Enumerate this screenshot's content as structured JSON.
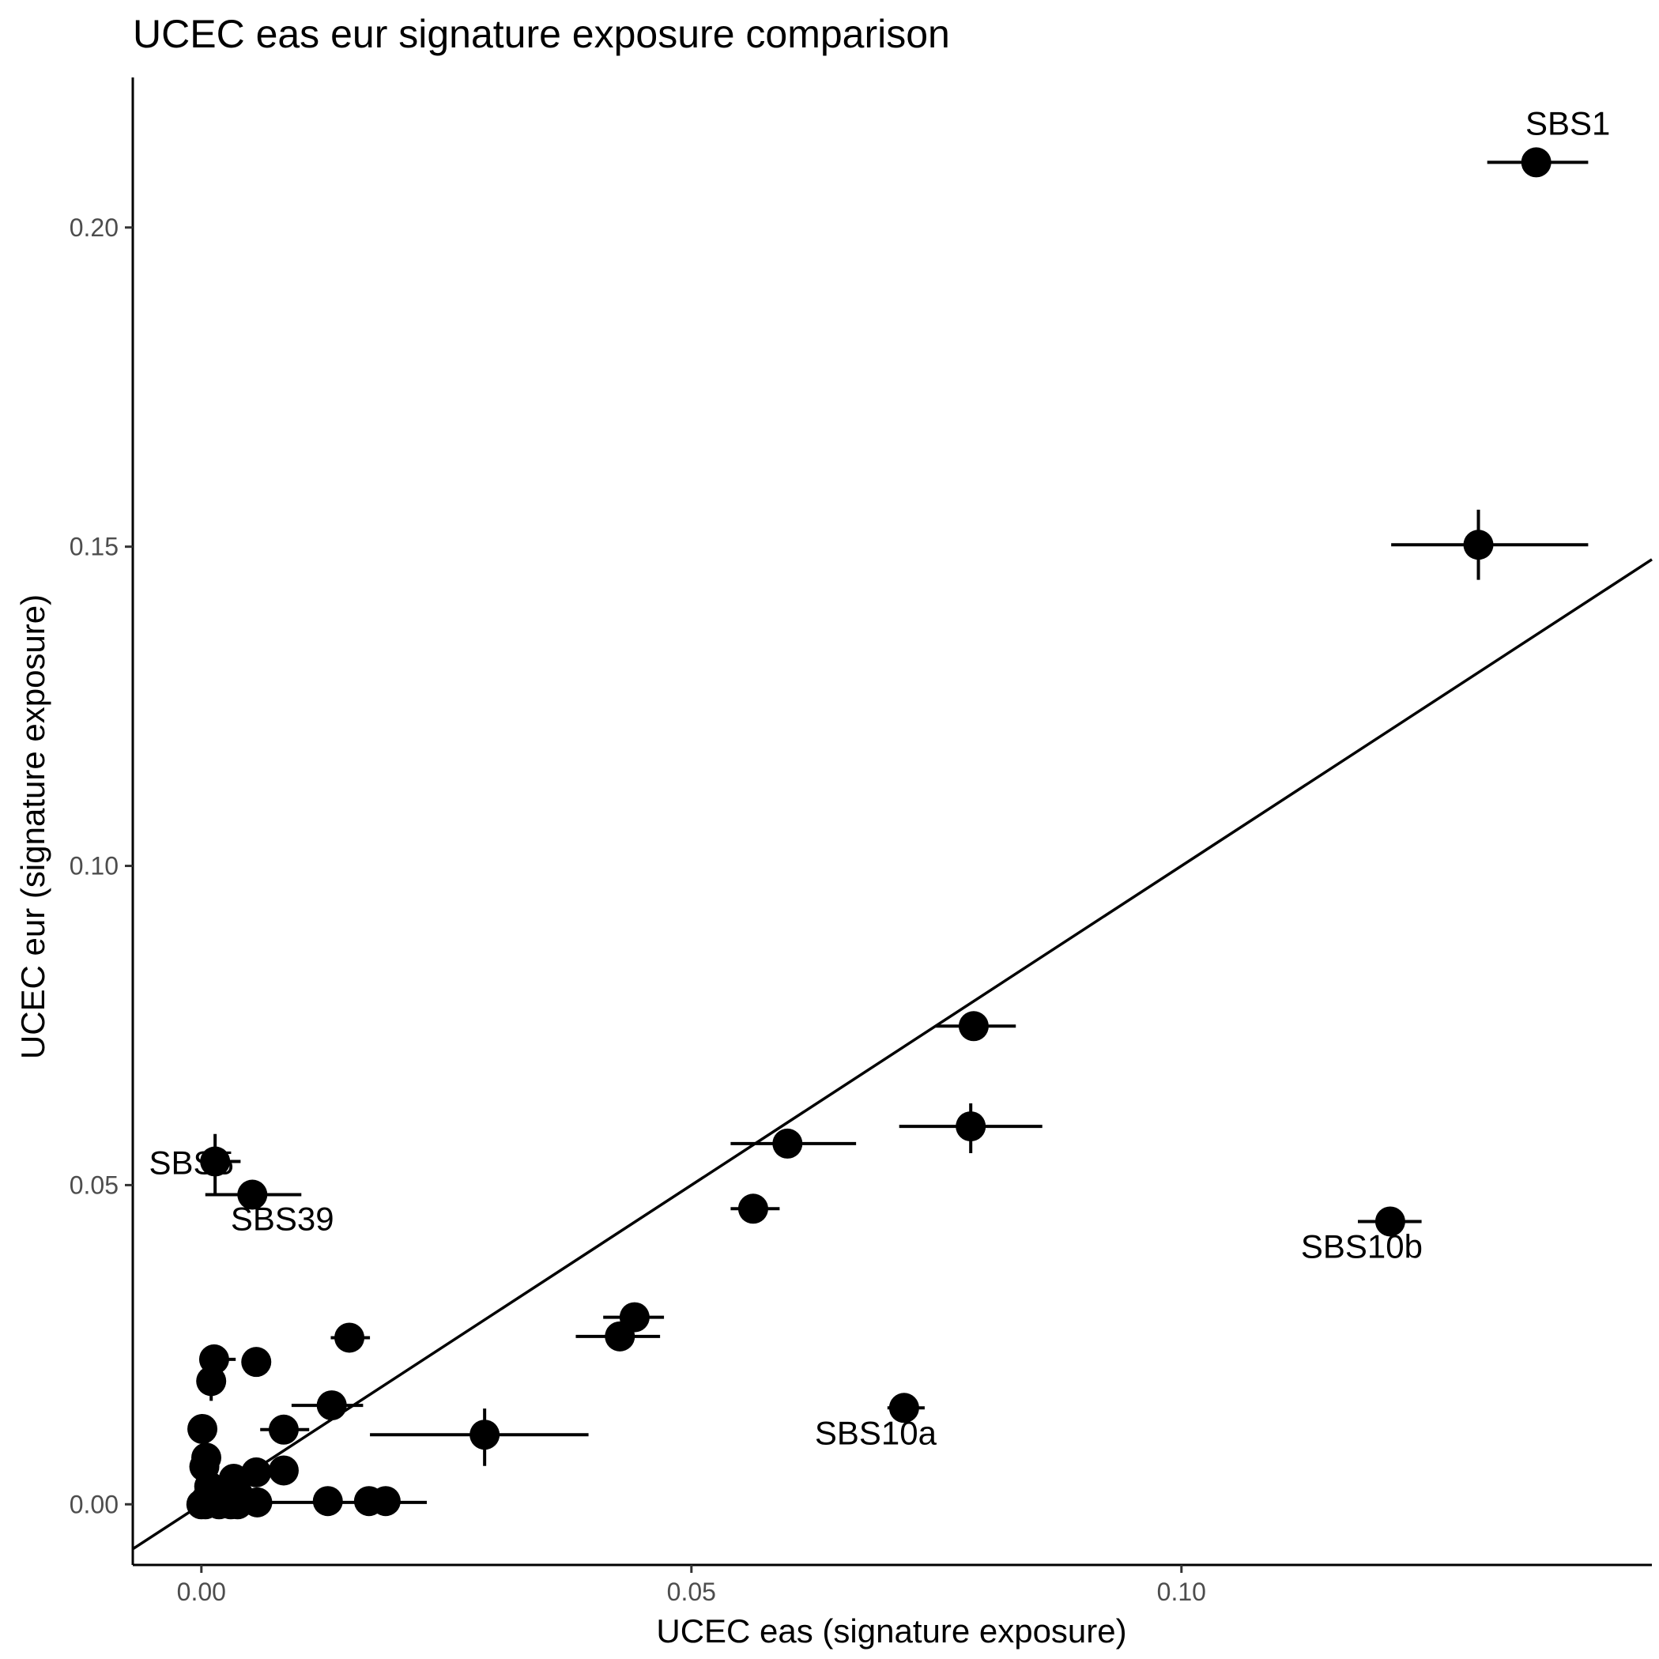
{
  "chart_data": {
    "type": "scatter",
    "title": "UCEC eas eur signature exposure comparison",
    "xlabel": "UCEC eas (signature exposure)",
    "ylabel": "UCEC eur (signature exposure)",
    "xlim": [
      -0.007,
      0.148
    ],
    "ylim": [
      -0.0095,
      0.2235
    ],
    "x_ticks": [
      0.0,
      0.05,
      0.1
    ],
    "x_tick_labels": [
      "0.00",
      "0.05",
      "0.10"
    ],
    "y_ticks": [
      0.0,
      0.05,
      0.1,
      0.15,
      0.2
    ],
    "y_tick_labels": [
      "0.00",
      "0.05",
      "0.10",
      "0.15",
      "0.20"
    ],
    "grid": false,
    "legend": "none",
    "reference_line": {
      "type": "identity",
      "label": "y = x"
    },
    "points": [
      {
        "label": "SBS1",
        "x": 0.1362,
        "y": 0.2102,
        "xerr": [
          0.1312,
          0.1415
        ],
        "yerr": null
      },
      {
        "label": "",
        "x": 0.1303,
        "y": 0.1503,
        "xerr": [
          0.1214,
          0.1415
        ],
        "yerr": [
          0.1448,
          0.1558
        ]
      },
      {
        "label": "SBS10b",
        "x": 0.1213,
        "y": 0.0443,
        "xerr": [
          0.118,
          0.1245
        ],
        "yerr": null
      },
      {
        "label": "",
        "x": 0.0788,
        "y": 0.0749,
        "xerr": [
          0.0749,
          0.0831
        ],
        "yerr": null
      },
      {
        "label": "",
        "x": 0.0785,
        "y": 0.0592,
        "xerr": [
          0.0712,
          0.0858
        ],
        "yerr": [
          0.055,
          0.0628
        ]
      },
      {
        "label": "SBS10a",
        "x": 0.0717,
        "y": 0.0151,
        "xerr": [
          0.07,
          0.0738
        ],
        "yerr": null
      },
      {
        "label": "",
        "x": 0.0598,
        "y": 0.0565,
        "xerr": [
          0.054,
          0.0668
        ],
        "yerr": null
      },
      {
        "label": "",
        "x": 0.0563,
        "y": 0.0463,
        "xerr": [
          0.054,
          0.059
        ],
        "yerr": null
      },
      {
        "label": "",
        "x": 0.0442,
        "y": 0.0293,
        "xerr": [
          0.041,
          0.0472
        ],
        "yerr": null
      },
      {
        "label": "",
        "x": 0.0427,
        "y": 0.0263,
        "xerr": [
          0.0382,
          0.0468
        ],
        "yerr": null
      },
      {
        "label": "",
        "x": 0.0289,
        "y": 0.0109,
        "xerr": [
          0.0172,
          0.0395
        ],
        "yerr": [
          0.006,
          0.015
        ]
      },
      {
        "label": "",
        "x": 0.0151,
        "y": 0.0261,
        "xerr": [
          0.0132,
          0.0172
        ],
        "yerr": null
      },
      {
        "label": "",
        "x": 0.0133,
        "y": 0.0155,
        "xerr": [
          0.0092,
          0.0165
        ],
        "yerr": null
      },
      {
        "label": "",
        "x": 0.0084,
        "y": 0.0117,
        "xerr": [
          0.006,
          0.011
        ],
        "yerr": null
      },
      {
        "label": "",
        "x": 0.0084,
        "y": 0.0053,
        "xerr": null,
        "yerr": null
      },
      {
        "label": "",
        "x": 0.0056,
        "y": 0.0223,
        "xerr": null,
        "yerr": null
      },
      {
        "label": "SBS39",
        "x": 0.0052,
        "y": 0.0485,
        "xerr": [
          0.0004,
          0.0102
        ],
        "yerr": null
      },
      {
        "label": "SBS5",
        "x": 0.0014,
        "y": 0.0537,
        "xerr": [
          0.0,
          0.004
        ],
        "yerr": [
          0.0485,
          0.058
        ]
      },
      {
        "label": "",
        "x": 0.0013,
        "y": 0.0227,
        "xerr": [
          0.0,
          0.0035
        ],
        "yerr": null
      },
      {
        "label": "",
        "x": 0.001,
        "y": 0.0193,
        "xerr": null,
        "yerr": [
          0.0162,
          0.0215
        ]
      },
      {
        "label": "",
        "x": 0.0001,
        "y": 0.0118,
        "xerr": null,
        "yerr": null
      },
      {
        "label": "",
        "x": 0.0005,
        "y": 0.0073,
        "xerr": null,
        "yerr": null
      },
      {
        "label": "",
        "x": 0.0003,
        "y": 0.0059,
        "xerr": null,
        "yerr": null
      },
      {
        "label": "",
        "x": 0.0056,
        "y": 0.005,
        "xerr": null,
        "yerr": null
      },
      {
        "label": "",
        "x": 0.0033,
        "y": 0.004,
        "xerr": null,
        "yerr": null
      },
      {
        "label": "",
        "x": 0.0008,
        "y": 0.0028,
        "xerr": null,
        "yerr": null
      },
      {
        "label": "",
        "x": 0.0021,
        "y": 0.002,
        "xerr": null,
        "yerr": null
      },
      {
        "label": "",
        "x": 0.0038,
        "y": 0.0014,
        "xerr": null,
        "yerr": null
      },
      {
        "label": "",
        "x": 0.0005,
        "y": 0.0008,
        "xerr": null,
        "yerr": null
      },
      {
        "label": "",
        "x": 0.0,
        "y": 0.0,
        "xerr": null,
        "yerr": null
      },
      {
        "label": "",
        "x": 0.0004,
        "y": 0.0,
        "xerr": null,
        "yerr": null
      },
      {
        "label": "",
        "x": 0.0018,
        "y": 0.0,
        "xerr": null,
        "yerr": null
      },
      {
        "label": "",
        "x": 0.003,
        "y": 0.0,
        "xerr": null,
        "yerr": null
      },
      {
        "label": "",
        "x": 0.0037,
        "y": 0.0,
        "xerr": null,
        "yerr": null
      },
      {
        "label": "",
        "x": 0.0057,
        "y": 0.0003,
        "xerr": [
          0.003,
          0.023
        ],
        "yerr": null
      },
      {
        "label": "",
        "x": 0.0129,
        "y": 0.0005,
        "xerr": null,
        "yerr": null
      },
      {
        "label": "",
        "x": 0.0171,
        "y": 0.0005,
        "xerr": null,
        "yerr": null
      },
      {
        "label": "",
        "x": 0.0188,
        "y": 0.0005,
        "xerr": null,
        "yerr": null
      }
    ]
  }
}
